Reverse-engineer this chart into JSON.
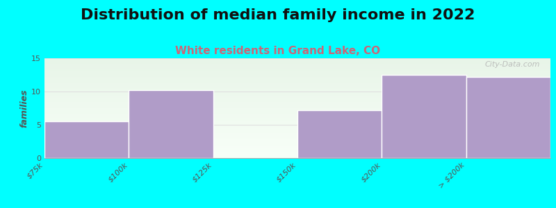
{
  "title": "Distribution of median family income in 2022",
  "subtitle": "White residents in Grand Lake, CO",
  "categories": [
    "$75k",
    "$100k",
    "$125k",
    "$150k",
    "$200k",
    "> $200k"
  ],
  "values": [
    5.5,
    10.2,
    0.0,
    7.2,
    12.5,
    12.2
  ],
  "bar_color": "#b09cc8",
  "highlight_color": "#dff0df",
  "highlight_index": 2,
  "ylabel": "families",
  "ylim": [
    0,
    15
  ],
  "yticks": [
    0,
    5,
    10,
    15
  ],
  "background_color": "#00ffff",
  "plot_bg_top": "#e8f5e8",
  "plot_bg_bottom": "#f8fff8",
  "title_fontsize": 16,
  "subtitle_fontsize": 11,
  "subtitle_color": "#cc6677",
  "watermark": "City-Data.com",
  "bar_edge_color": "white",
  "grid_color": "#e0e0e0",
  "tick_label_color": "#555555",
  "ylabel_color": "#555555"
}
